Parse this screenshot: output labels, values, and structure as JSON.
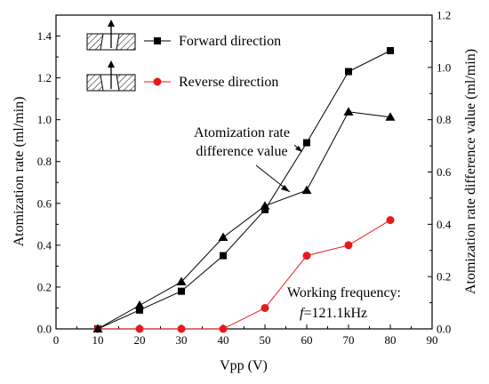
{
  "chart_data": {
    "type": "line",
    "xlabel": "Vpp (V)",
    "ylabel": "Atomization rate (ml/min)",
    "y2label": "Atomization rate difference value (ml/min)",
    "xlim": [
      0,
      90
    ],
    "ylim": [
      0,
      1.5
    ],
    "y2lim": [
      0,
      1.2
    ],
    "xticks": [
      "0",
      "10",
      "20",
      "30",
      "40",
      "50",
      "60",
      "70",
      "80",
      "90"
    ],
    "yticks": [
      "0.0",
      "0.2",
      "0.4",
      "0.6",
      "0.8",
      "1.0",
      "1.2",
      "1.4"
    ],
    "y2ticks": [
      "0.0",
      "0.2",
      "0.4",
      "0.6",
      "0.8",
      "1.0",
      "1.2"
    ],
    "legend_position": "top-left",
    "grid": false,
    "series": [
      {
        "name": "Forward direction",
        "axis": "left",
        "color": "#000000",
        "marker": "square",
        "x": [
          10,
          20,
          30,
          40,
          50,
          60,
          70,
          80
        ],
        "y": [
          0.0,
          0.09,
          0.18,
          0.35,
          0.57,
          0.89,
          1.23,
          1.33
        ]
      },
      {
        "name": "Reverse direction",
        "axis": "left",
        "color": "#e8191e",
        "marker": "circle",
        "x": [
          10,
          20,
          30,
          40,
          50,
          60,
          70,
          80
        ],
        "y": [
          0.0,
          0.0,
          0.0,
          0.0,
          0.1,
          0.35,
          0.4,
          0.52
        ]
      },
      {
        "name": "",
        "axis": "right",
        "color": "#000000",
        "marker": "triangle",
        "x": [
          10,
          20,
          30,
          40,
          50,
          60,
          70,
          80
        ],
        "y": [
          0.0,
          0.09,
          0.18,
          0.35,
          0.47,
          0.53,
          0.83,
          0.81
        ]
      }
    ],
    "annotations": {
      "difference_label": [
        "Atomization rate",
        "difference value"
      ],
      "frequency_line1": "Working frequency:",
      "frequency_f": "f",
      "frequency_value": "=121.1kHz"
    }
  }
}
